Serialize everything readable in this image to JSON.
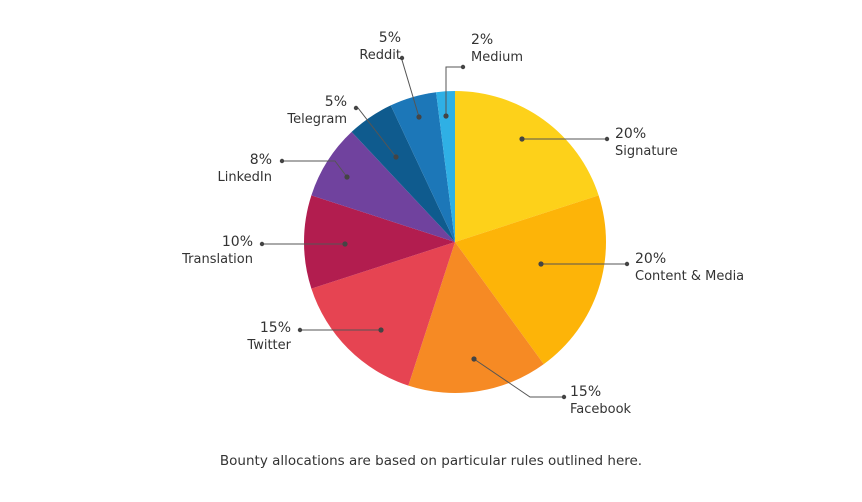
{
  "chart_data": {
    "type": "pie",
    "start_angle_deg": 0,
    "direction": "clockwise",
    "slices": [
      {
        "label": "Signature",
        "value": 20,
        "display": "20%",
        "color": "#FDD11A"
      },
      {
        "label": "Content & Media",
        "value": 20,
        "display": "20%",
        "color": "#FDB408"
      },
      {
        "label": "Facebook",
        "value": 15,
        "display": "15%",
        "color": "#F68A24"
      },
      {
        "label": "Twitter",
        "value": 15,
        "display": "15%",
        "color": "#E64452"
      },
      {
        "label": "Translation",
        "value": 10,
        "display": "10%",
        "color": "#B21D4F"
      },
      {
        "label": "LinkedIn",
        "value": 8,
        "display": "8%",
        "color": "#70429E"
      },
      {
        "label": "Telegram",
        "value": 5,
        "display": "5%",
        "color": "#0F5B8E"
      },
      {
        "label": "Reddit",
        "value": 5,
        "display": "5%",
        "color": "#1C77B8"
      },
      {
        "label": "Medium",
        "value": 2,
        "display": "2%",
        "color": "#2FB0E5"
      }
    ]
  },
  "caption": "Bounty allocations are based on particular rules outlined here."
}
